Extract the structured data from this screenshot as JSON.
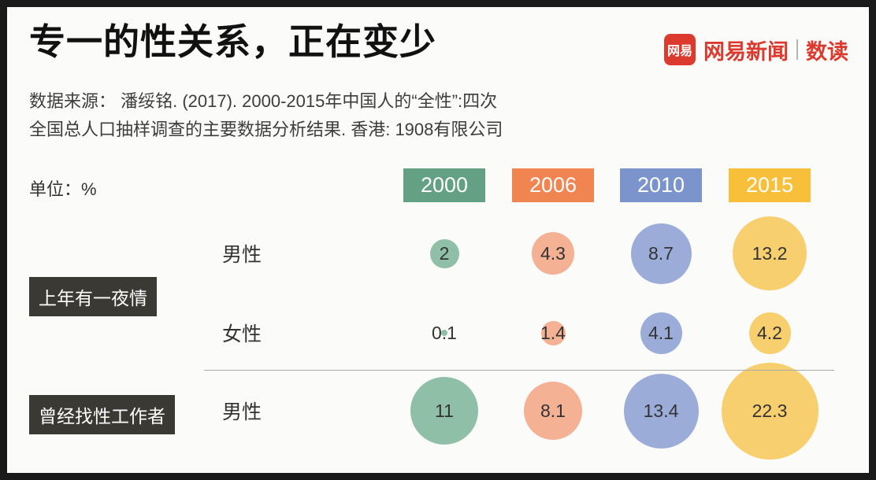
{
  "header": {
    "title": "专一的性关系，正在变少",
    "logo": {
      "icon_text": "网易",
      "brand": "网易新闻",
      "sub": "数读",
      "color": "#dd3a2f"
    },
    "source_line1": "数据来源： 潘绥铭. (2017). 2000-2015年中国人的“全性”:四次",
    "source_line2": "全国总人口抽样调查的主要数据分析结果. 香港: 1908有限公司"
  },
  "legend": {
    "unit_label": "单位：%",
    "years": [
      {
        "label": "2000",
        "color": "#63a084",
        "bubble_color": "#8fc0a7"
      },
      {
        "label": "2006",
        "color": "#f08551",
        "bubble_color": "#f4b193"
      },
      {
        "label": "2010",
        "color": "#7b94cc",
        "bubble_color": "#9bacd8"
      },
      {
        "label": "2015",
        "color": "#f8c03a",
        "bubble_color": "#f8cf6e"
      }
    ]
  },
  "chart_data": {
    "type": "bubble",
    "title": "专一的性关系，正在变少",
    "unit": "%",
    "categories": [
      "2000",
      "2006",
      "2010",
      "2015"
    ],
    "groups": [
      {
        "label": "上年有一夜情",
        "rows": [
          {
            "label": "男性",
            "values": [
              2,
              4.3,
              8.7,
              13.2
            ]
          },
          {
            "label": "女性",
            "values": [
              0.1,
              1.4,
              4.1,
              4.2
            ]
          }
        ]
      },
      {
        "label": "曾经找性工作者",
        "rows": [
          {
            "label": "男性",
            "values": [
              11,
              8.1,
              13.4,
              22.3
            ]
          }
        ]
      }
    ],
    "legend_position": "top",
    "grid": false
  }
}
